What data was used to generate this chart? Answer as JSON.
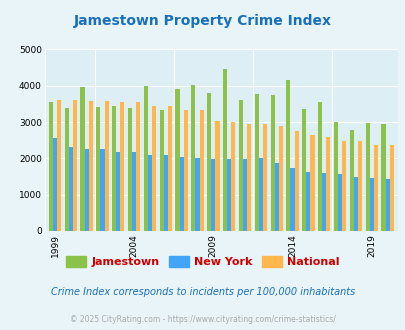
{
  "title": "Jamestown Property Crime Index",
  "title_color": "#1a6fba",
  "years": [
    1999,
    2000,
    2001,
    2002,
    2003,
    2004,
    2005,
    2006,
    2007,
    2008,
    2009,
    2010,
    2011,
    2012,
    2013,
    2014,
    2015,
    2016,
    2017,
    2018,
    2019,
    2020
  ],
  "jamestown": [
    3550,
    3400,
    3980,
    3420,
    3450,
    3400,
    4000,
    3340,
    3900,
    4020,
    3800,
    4450,
    3620,
    3780,
    3760,
    4170,
    3350,
    3560,
    3000,
    2770,
    2980,
    2960
  ],
  "newyork": [
    2550,
    2320,
    2260,
    2260,
    2190,
    2190,
    2090,
    2090,
    2040,
    2000,
    1980,
    1980,
    1980,
    2000,
    1870,
    1730,
    1620,
    1590,
    1560,
    1500,
    1470,
    1420
  ],
  "national": [
    3600,
    3620,
    3590,
    3570,
    3560,
    3540,
    3430,
    3430,
    3320,
    3320,
    3040,
    3000,
    2960,
    2940,
    2900,
    2750,
    2640,
    2600,
    2480,
    2490,
    2380,
    2360
  ],
  "jamestown_color": "#8bc34a",
  "newyork_color": "#42a5f5",
  "national_color": "#ffb74d",
  "bg_color": "#e8f4f8",
  "plot_bg": "#ddeef5",
  "ylim": [
    0,
    5000
  ],
  "yticks": [
    0,
    1000,
    2000,
    3000,
    4000,
    5000
  ],
  "xtick_years": [
    1999,
    2004,
    2009,
    2014,
    2019
  ],
  "note": "Crime Index corresponds to incidents per 100,000 inhabitants",
  "copyright": "© 2025 CityRating.com - https://www.cityrating.com/crime-statistics/",
  "note_color": "#1a6fba",
  "copyright_color": "#aaaaaa",
  "legend_text_color": "#cc0000",
  "bar_width": 0.26
}
